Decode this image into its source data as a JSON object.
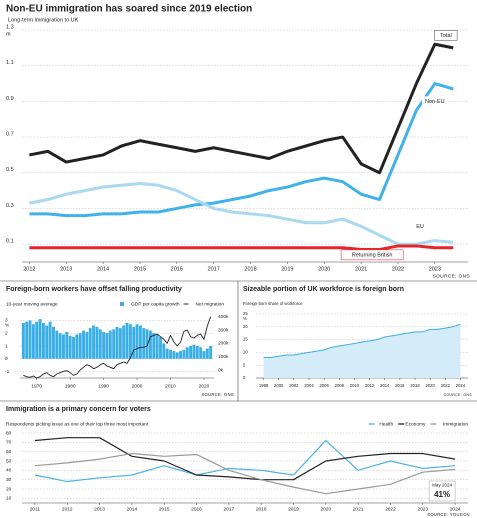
{
  "chart_data": [
    {
      "type": "line",
      "title": "Non-EU immigration has soared since 2019 election",
      "subtitle": "Long-term immigration to UK",
      "y_unit": "m",
      "x": [
        2012,
        2012.5,
        2013,
        2013.5,
        2014,
        2014.5,
        2015,
        2015.5,
        2016,
        2016.5,
        2017,
        2017.5,
        2018,
        2018.5,
        2019,
        2019.5,
        2020,
        2020.5,
        2021,
        2021.5,
        2022,
        2022.5,
        2023,
        2023.5
      ],
      "xlim": [
        2011.8,
        2023.9
      ],
      "xticks": [
        2012,
        2013,
        2014,
        2015,
        2016,
        2017,
        2018,
        2019,
        2020,
        2021,
        2022,
        2023
      ],
      "ylim": [
        0,
        1.3
      ],
      "yticks": [
        0.1,
        0.3,
        0.5,
        0.7,
        0.9,
        1.1,
        1.3
      ],
      "grid": true,
      "legend": "inline",
      "source": "SOURCE: ONS",
      "series": [
        {
          "name": "Total",
          "color": "#222222",
          "values": [
            0.6,
            0.62,
            0.56,
            0.58,
            0.6,
            0.65,
            0.68,
            0.66,
            0.64,
            0.62,
            0.64,
            0.62,
            0.6,
            0.58,
            0.62,
            0.65,
            0.68,
            0.7,
            0.55,
            0.5,
            0.75,
            1.0,
            1.22,
            1.2
          ]
        },
        {
          "name": "Non-EU",
          "color": "#3fb1ec",
          "values": [
            0.27,
            0.27,
            0.26,
            0.26,
            0.27,
            0.27,
            0.28,
            0.28,
            0.3,
            0.32,
            0.33,
            0.35,
            0.37,
            0.4,
            0.42,
            0.45,
            0.47,
            0.45,
            0.38,
            0.35,
            0.6,
            0.85,
            1.0,
            0.97
          ]
        },
        {
          "name": "EU",
          "color": "#a9d8f0",
          "values": [
            0.33,
            0.35,
            0.38,
            0.4,
            0.42,
            0.43,
            0.44,
            0.43,
            0.4,
            0.35,
            0.3,
            0.28,
            0.27,
            0.26,
            0.24,
            0.22,
            0.22,
            0.24,
            0.2,
            0.15,
            0.1,
            0.1,
            0.12,
            0.11
          ]
        },
        {
          "name": "Returning British",
          "color": "#e8242a",
          "values": [
            0.08,
            0.08,
            0.08,
            0.08,
            0.08,
            0.08,
            0.08,
            0.08,
            0.08,
            0.08,
            0.08,
            0.08,
            0.08,
            0.08,
            0.08,
            0.08,
            0.08,
            0.08,
            0.07,
            0.07,
            0.09,
            0.09,
            0.08,
            0.08
          ]
        }
      ]
    },
    {
      "type": "bar",
      "title": "Foreign-born workers have offset falling productivity",
      "subtitle": "10-year moving average",
      "y_unit": "%",
      "x": [
        1966,
        1967,
        1968,
        1969,
        1970,
        1971,
        1972,
        1973,
        1974,
        1975,
        1976,
        1977,
        1978,
        1979,
        1980,
        1981,
        1982,
        1983,
        1984,
        1985,
        1986,
        1987,
        1988,
        1989,
        1990,
        1991,
        1992,
        1993,
        1994,
        1995,
        1996,
        1997,
        1998,
        1999,
        2000,
        2001,
        2002,
        2003,
        2004,
        2005,
        2006,
        2007,
        2008,
        2009,
        2010,
        2011,
        2012,
        2013,
        2014,
        2015,
        2016,
        2017,
        2018,
        2019,
        2020,
        2021,
        2022
      ],
      "xlim": [
        1965,
        2023
      ],
      "xticks": [
        1970,
        1980,
        1990,
        2000,
        2010,
        2020
      ],
      "ylim": [
        -1.5,
        3.5
      ],
      "yticks": [
        -1,
        0,
        1,
        2,
        3
      ],
      "y2lim": [
        -60,
        420
      ],
      "y2ticks": [
        {
          "value": 0,
          "label": "0k"
        },
        {
          "value": 100,
          "label": "100k"
        },
        {
          "value": 200,
          "label": "200k"
        },
        {
          "value": 300,
          "label": "300k"
        },
        {
          "value": 400,
          "label": "400k"
        }
      ],
      "grid": true,
      "legend": "top-right",
      "source": "SOURCE: ONS",
      "series": [
        {
          "name": "GDP per capita growth",
          "color": "#3aaee6",
          "values": [
            2.8,
            2.9,
            3.0,
            2.7,
            2.9,
            3.1,
            2.8,
            2.6,
            2.9,
            2.5,
            2.2,
            2.0,
            1.9,
            2.1,
            1.8,
            1.7,
            1.9,
            2.0,
            2.2,
            2.1,
            2.4,
            2.6,
            2.5,
            2.3,
            2.1,
            2.0,
            2.2,
            2.3,
            2.5,
            2.4,
            2.6,
            2.8,
            2.7,
            2.5,
            2.7,
            2.6,
            2.4,
            2.3,
            2.2,
            2.0,
            1.9,
            1.7,
            1.2,
            0.8,
            0.7,
            0.6,
            0.5,
            0.6,
            0.7,
            0.9,
            1.0,
            1.1,
            1.0,
            0.9,
            0.6,
            0.8,
            1.0
          ]
        },
        {
          "name": "Net migration",
          "color": "#222222",
          "axis": "y2",
          "values": [
            -40,
            -50,
            -55,
            -45,
            -60,
            -50,
            -30,
            -20,
            -40,
            -50,
            -30,
            -20,
            -10,
            -5,
            -20,
            -40,
            -30,
            0,
            20,
            40,
            30,
            10,
            20,
            40,
            50,
            30,
            20,
            10,
            40,
            50,
            60,
            50,
            90,
            150,
            160,
            170,
            170,
            180,
            250,
            260,
            270,
            250,
            230,
            200,
            260,
            210,
            180,
            210,
            290,
            300,
            250,
            240,
            260,
            270,
            230,
            330,
            400
          ]
        }
      ]
    },
    {
      "type": "area",
      "title": "Sizeable portion of UK workforce is foreign born",
      "subtitle": "Foreign-born share of workforce",
      "y_unit": "%",
      "x": [
        1998,
        1999,
        2000,
        2001,
        2002,
        2003,
        2004,
        2005,
        2006,
        2007,
        2008,
        2009,
        2010,
        2011,
        2012,
        2013,
        2014,
        2015,
        2016,
        2017,
        2018,
        2019,
        2020,
        2021,
        2022,
        2023,
        2024
      ],
      "xlim": [
        1997,
        2025
      ],
      "xticks": [
        1998,
        2000,
        2002,
        2004,
        2006,
        2008,
        2010,
        2012,
        2014,
        2016,
        2018,
        2020,
        2022,
        2024
      ],
      "ylim": [
        0,
        25
      ],
      "yticks": [
        0,
        5,
        10,
        15,
        20,
        25
      ],
      "grid": true,
      "source": "SOURCE: ONS",
      "color": "#3aaee6",
      "fill": "#d3ecf8",
      "values": [
        8,
        8,
        8.5,
        9,
        9,
        9.5,
        10,
        10.5,
        11,
        12,
        12.5,
        13,
        13.5,
        14,
        14.5,
        15,
        16,
        16.5,
        17,
        17.5,
        18,
        18,
        19,
        19,
        19.5,
        20,
        21
      ]
    },
    {
      "type": "line",
      "title": "Immigration is a primary concern for voters",
      "subtitle": "Respondents picking issue as one of their top three most important",
      "x": [
        2011,
        2012,
        2013,
        2014,
        2015,
        2016,
        2017,
        2018,
        2019,
        2020,
        2021,
        2022,
        2023,
        2024
      ],
      "xlim": [
        2010.6,
        2024.4
      ],
      "xticks": [
        2011,
        2012,
        2013,
        2014,
        2015,
        2016,
        2017,
        2018,
        2019,
        2020,
        2021,
        2022,
        2023,
        2024
      ],
      "ylim": [
        5,
        80
      ],
      "yticks": [
        10,
        20,
        30,
        40,
        50,
        60,
        70,
        80
      ],
      "grid": true,
      "legend": "top-right",
      "source": "SOURCE: YOUGOV",
      "annotation": "May 2024",
      "series": [
        {
          "name": "Health",
          "color": "#49b4e6",
          "values": [
            35,
            28,
            32,
            35,
            45,
            35,
            42,
            40,
            35,
            72,
            40,
            50,
            42,
            45
          ]
        },
        {
          "name": "Economy",
          "color": "#222222",
          "values": [
            72,
            75,
            75,
            55,
            50,
            35,
            33,
            30,
            30,
            50,
            55,
            58,
            58,
            52
          ]
        },
        {
          "name": "Immigration",
          "color": "#999999",
          "values": [
            45,
            48,
            52,
            58,
            55,
            57,
            40,
            30,
            22,
            15,
            20,
            25,
            38,
            41
          ],
          "value_labels": [
            null,
            null,
            null,
            null,
            null,
            null,
            null,
            null,
            null,
            null,
            null,
            null,
            null,
            "41%"
          ]
        }
      ]
    }
  ]
}
